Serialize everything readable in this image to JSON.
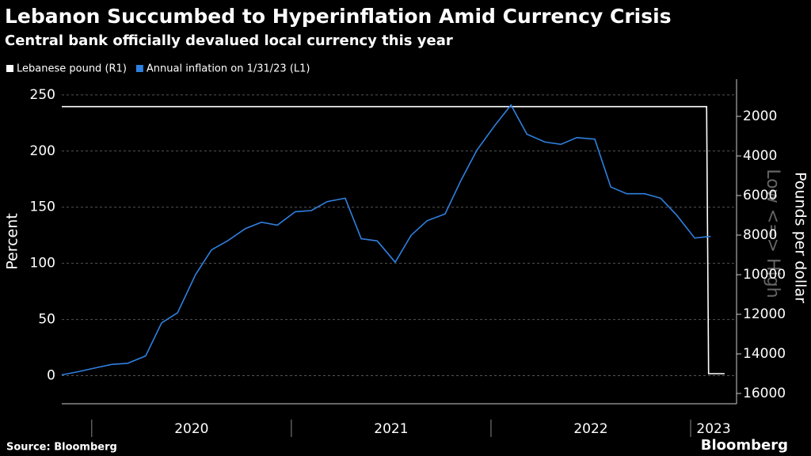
{
  "chart_data": {
    "type": "line",
    "title": "Lebanon Succumbed to Hyperinflation Amid Currency Crisis",
    "subtitle": "Central bank officially devalued local currency this year",
    "y_label": "Percent",
    "y2_label": "Pounds per dollar",
    "y2_annotation": "Low <=> High",
    "source": "Source: Bloomberg",
    "brand": "Bloomberg",
    "xlim": [
      2019.85,
      2023.23
    ],
    "xticks": [
      2020,
      2021,
      2022,
      2023
    ],
    "ylim": [
      -25,
      264
    ],
    "yticks": [
      0,
      50,
      100,
      150,
      200,
      250
    ],
    "y2lim": [
      16520,
      120
    ],
    "y2ticks": [
      2000,
      4000,
      6000,
      8000,
      10000,
      12000,
      14000,
      16000
    ],
    "grid": true,
    "legend": "top-left",
    "series": [
      {
        "name": "Lebanese pound (R1)",
        "color": "#ffffff",
        "axis": "y2",
        "x": [
          2019.85,
          2023.08,
          2023.09,
          2023.17
        ],
        "values": [
          1507.5,
          1507.5,
          15000,
          15000
        ]
      },
      {
        "name": "Annual inflation on 1/31/23 (L1)",
        "color": "#2f80e0",
        "x": [
          2019.85,
          2019.93,
          2020.02,
          2020.1,
          2020.18,
          2020.27,
          2020.35,
          2020.43,
          2020.52,
          2020.6,
          2020.68,
          2020.77,
          2020.85,
          2020.93,
          2021.02,
          2021.1,
          2021.18,
          2021.27,
          2021.35,
          2021.43,
          2021.52,
          2021.6,
          2021.68,
          2021.77,
          2021.85,
          2021.93,
          2022.02,
          2022.1,
          2022.18,
          2022.27,
          2022.35,
          2022.43,
          2022.52,
          2022.6,
          2022.68,
          2022.77,
          2022.85,
          2022.93,
          2023.02,
          2023.1
        ],
        "values": [
          0.7,
          3.5,
          7,
          10,
          11,
          17.6,
          47,
          56,
          90,
          112,
          120,
          131,
          136.6,
          134,
          146,
          147,
          155,
          158,
          122,
          120,
          101,
          125,
          138,
          144,
          174,
          201,
          223,
          241,
          215,
          208,
          206,
          212,
          210.6,
          168,
          162,
          162,
          158,
          143,
          122.5,
          124
        ]
      }
    ]
  }
}
